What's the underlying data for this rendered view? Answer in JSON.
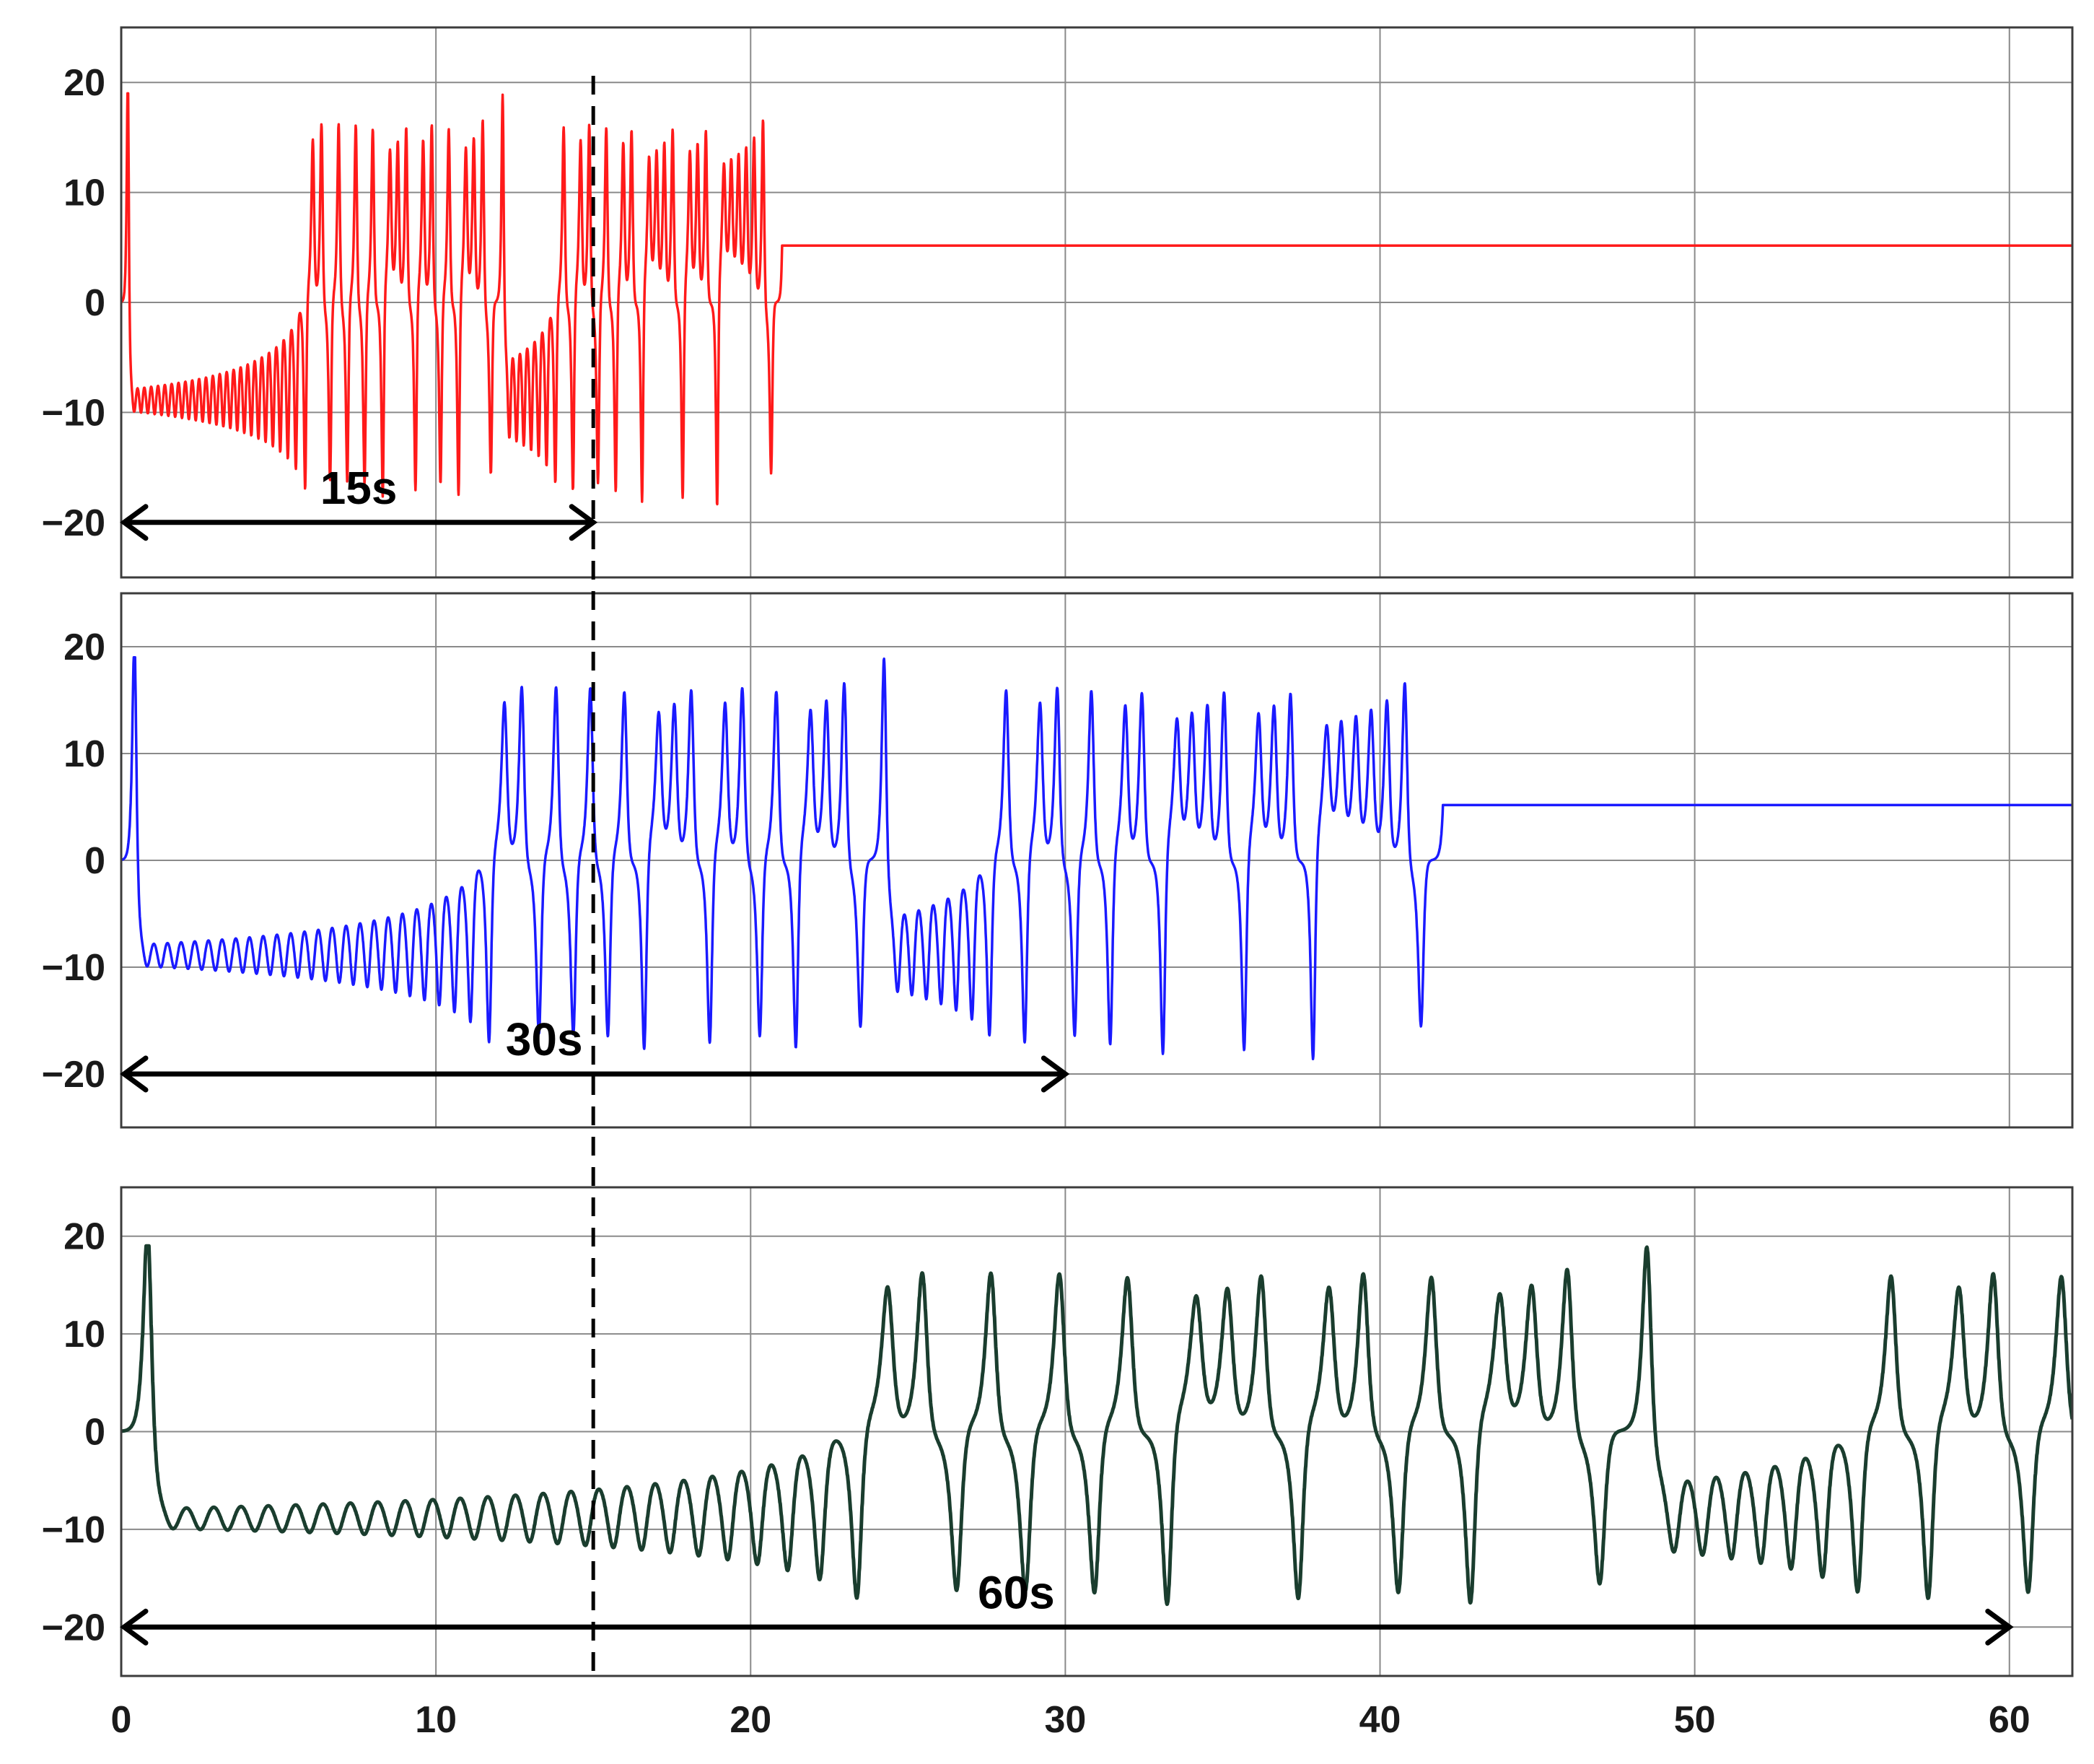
{
  "chart_data": [
    {
      "type": "line",
      "panel": "top",
      "color": "#ff1a1a",
      "xlim": [
        0,
        62
      ],
      "ylim": [
        -25,
        25
      ],
      "xticks": [
        "0",
        "10",
        "20",
        "30",
        "40",
        "50",
        "60"
      ],
      "yticks": [
        "20",
        "10",
        "0",
        "−10",
        "−20"
      ],
      "grid": true,
      "switch_period": 15,
      "amplitude_range": [
        -18.5,
        18.5
      ],
      "annotation": {
        "label": "15s",
        "from": 0,
        "to": 15,
        "y": -20
      }
    },
    {
      "type": "line",
      "panel": "middle",
      "color": "#1a1aff",
      "xlim": [
        0,
        62
      ],
      "ylim": [
        -25,
        25
      ],
      "xticks": [
        "0",
        "10",
        "20",
        "30",
        "40",
        "50",
        "60"
      ],
      "yticks": [
        "20",
        "10",
        "0",
        "−10",
        "−20"
      ],
      "grid": true,
      "switch_period": 30,
      "amplitude_range": [
        -18.5,
        18.5
      ],
      "annotation": {
        "label": "30s",
        "from": 0,
        "to": 30,
        "y": -20
      }
    },
    {
      "type": "line",
      "panel": "bottom",
      "color": "#1a3d2e",
      "xlim": [
        0,
        62
      ],
      "ylim": [
        -25,
        25
      ],
      "xticks": [
        "0",
        "10",
        "20",
        "30",
        "40",
        "50",
        "60"
      ],
      "yticks": [
        "20",
        "10",
        "0",
        "−10",
        "−20"
      ],
      "grid": true,
      "switch_period": 60,
      "amplitude_range": [
        -20,
        18.5
      ],
      "annotation": {
        "label": "60s",
        "from": 0,
        "to": 60,
        "y": -20
      },
      "x_axis_labels_shown": true
    }
  ],
  "marker": {
    "type": "dashed-vertical-line",
    "x": 15
  }
}
